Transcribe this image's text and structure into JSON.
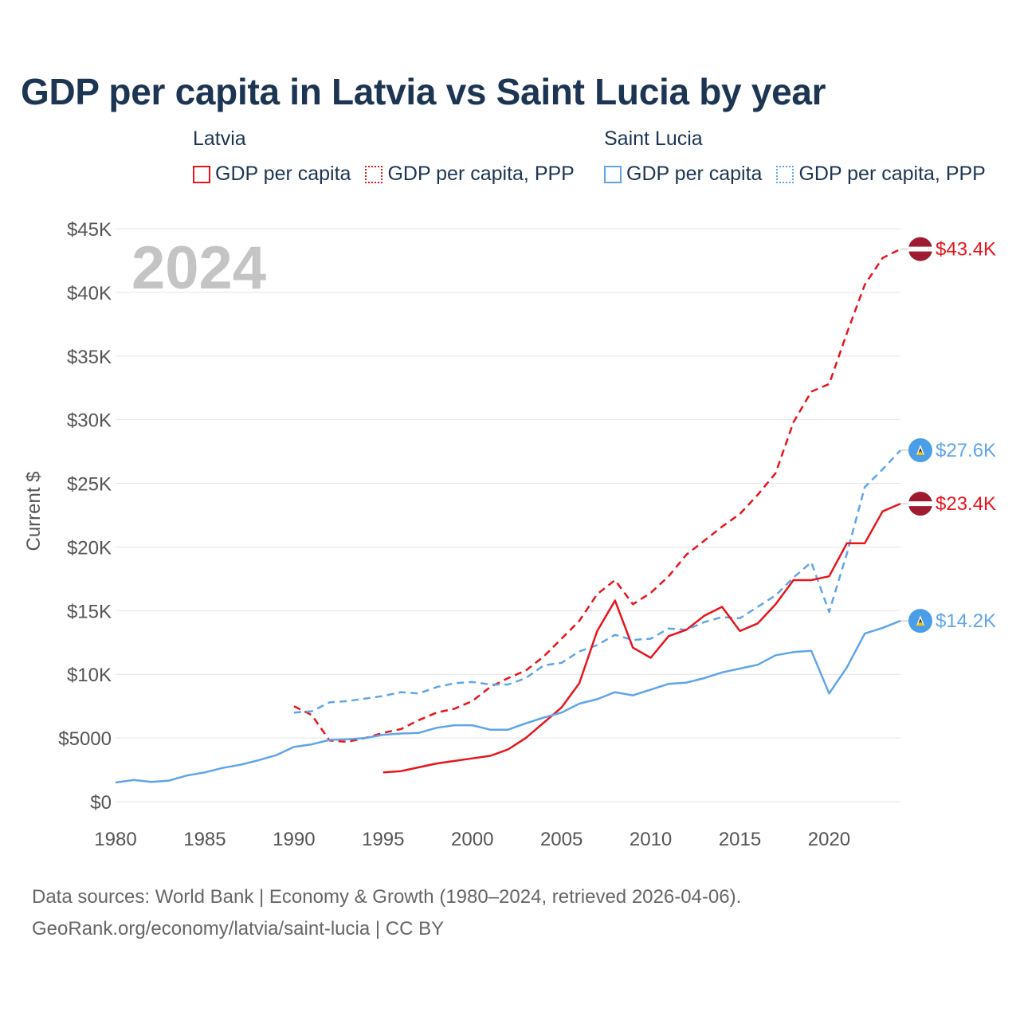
{
  "title": "GDP per capita in Latvia vs Saint Lucia by year",
  "legend": {
    "groups": [
      {
        "country": "Latvia",
        "items": [
          {
            "label": "GDP per capita",
            "style": "solid",
            "color": "#e8141c"
          },
          {
            "label": "GDP per capita, PPP",
            "style": "dotted",
            "color": "#e8141c"
          }
        ]
      },
      {
        "country": "Saint Lucia",
        "items": [
          {
            "label": "GDP per capita",
            "style": "solid",
            "color": "#5fa5e8"
          },
          {
            "label": "GDP per capita, PPP",
            "style": "dotted",
            "color": "#5fa5e8"
          }
        ]
      }
    ]
  },
  "footer": {
    "line1": "Data sources: World Bank | Economy & Growth (1980–2024, retrieved 2026-04-06).",
    "line2": "GeoRank.org/economy/latvia/saint-lucia | CC BY"
  },
  "chart_data": {
    "type": "line",
    "title": "GDP per capita in Latvia vs Saint Lucia by year",
    "xlabel": "",
    "ylabel": "Current $",
    "year_label": "2024",
    "xlim": [
      1980,
      2024
    ],
    "ylim": [
      0,
      45000
    ],
    "grid": true,
    "x_ticks": [
      {
        "value": 1980,
        "label": "1980"
      },
      {
        "value": 1985,
        "label": "1985"
      },
      {
        "value": 1990,
        "label": "1990"
      },
      {
        "value": 1995,
        "label": "1995"
      },
      {
        "value": 2000,
        "label": "2000"
      },
      {
        "value": 2005,
        "label": "2005"
      },
      {
        "value": 2010,
        "label": "2010"
      },
      {
        "value": 2015,
        "label": "2015"
      },
      {
        "value": 2020,
        "label": "2020"
      }
    ],
    "y_ticks": [
      {
        "value": 0,
        "label": "$0"
      },
      {
        "value": 5000,
        "label": "$5000"
      },
      {
        "value": 10000,
        "label": "$10K"
      },
      {
        "value": 15000,
        "label": "$15K"
      },
      {
        "value": 20000,
        "label": "$20K"
      },
      {
        "value": 25000,
        "label": "$25K"
      },
      {
        "value": 30000,
        "label": "$30K"
      },
      {
        "value": 35000,
        "label": "$35K"
      },
      {
        "value": 40000,
        "label": "$40K"
      },
      {
        "value": 45000,
        "label": "$45K"
      }
    ],
    "series": [
      {
        "name": "Latvia GDP per capita, PPP",
        "country": "Latvia",
        "color": "#e8141c",
        "dash": "dashed",
        "end_label": "$43.4K",
        "flag": "latvia",
        "x": [
          1990,
          1991,
          1992,
          1993,
          1994,
          1995,
          1996,
          1997,
          1998,
          1999,
          2000,
          2001,
          2002,
          2003,
          2004,
          2005,
          2006,
          2007,
          2008,
          2009,
          2010,
          2011,
          2012,
          2013,
          2014,
          2015,
          2016,
          2017,
          2018,
          2019,
          2020,
          2021,
          2022,
          2023,
          2024
        ],
        "values": [
          7500,
          6800,
          4800,
          4700,
          5000,
          5400,
          5700,
          6400,
          7000,
          7300,
          7900,
          9000,
          9700,
          10300,
          11400,
          12800,
          14200,
          16300,
          17400,
          15500,
          16400,
          17700,
          19400,
          20500,
          21600,
          22600,
          24100,
          25800,
          29800,
          32200,
          32800,
          36800,
          40600,
          42700,
          43400
        ]
      },
      {
        "name": "Saint Lucia GDP per capita, PPP",
        "country": "Saint Lucia",
        "color": "#5fa5e8",
        "dash": "dashed",
        "end_label": "$27.6K",
        "flag": "saint-lucia",
        "x": [
          1990,
          1991,
          1992,
          1993,
          1994,
          1995,
          1996,
          1997,
          1998,
          1999,
          2000,
          2001,
          2002,
          2003,
          2004,
          2005,
          2006,
          2007,
          2008,
          2009,
          2010,
          2011,
          2012,
          2013,
          2014,
          2015,
          2016,
          2017,
          2018,
          2019,
          2020,
          2021,
          2022,
          2023,
          2024
        ],
        "values": [
          7000,
          7100,
          7800,
          7900,
          8100,
          8300,
          8600,
          8500,
          9000,
          9300,
          9400,
          9200,
          9200,
          9700,
          10700,
          10900,
          11800,
          12300,
          13100,
          12700,
          12800,
          13600,
          13500,
          14100,
          14500,
          14400,
          15300,
          16200,
          17600,
          18800,
          14900,
          19500,
          24700,
          26100,
          27600
        ]
      },
      {
        "name": "Latvia GDP per capita",
        "country": "Latvia",
        "color": "#e8141c",
        "dash": "solid",
        "end_label": "$23.4K",
        "flag": "latvia",
        "x": [
          1995,
          1996,
          1997,
          1998,
          1999,
          2000,
          2001,
          2002,
          2003,
          2004,
          2005,
          2006,
          2007,
          2008,
          2009,
          2010,
          2011,
          2012,
          2013,
          2014,
          2015,
          2016,
          2017,
          2018,
          2019,
          2020,
          2021,
          2022,
          2023,
          2024
        ],
        "values": [
          2300,
          2400,
          2700,
          3000,
          3200,
          3400,
          3600,
          4100,
          5000,
          6200,
          7400,
          9300,
          13400,
          15800,
          12100,
          11300,
          13000,
          13500,
          14600,
          15300,
          13400,
          14000,
          15500,
          17400,
          17400,
          17700,
          20300,
          20300,
          22800,
          23400
        ]
      },
      {
        "name": "Saint Lucia GDP per capita",
        "country": "Saint Lucia",
        "color": "#5fa5e8",
        "dash": "solid",
        "end_label": "$14.2K",
        "flag": "saint-lucia",
        "x": [
          1980,
          1981,
          1982,
          1983,
          1984,
          1985,
          1986,
          1987,
          1988,
          1989,
          1990,
          1991,
          1992,
          1993,
          1994,
          1995,
          1996,
          1997,
          1998,
          1999,
          2000,
          2001,
          2002,
          2003,
          2004,
          2005,
          2006,
          2007,
          2008,
          2009,
          2010,
          2011,
          2012,
          2013,
          2014,
          2015,
          2016,
          2017,
          2018,
          2019,
          2020,
          2021,
          2022,
          2023,
          2024
        ],
        "values": [
          1500,
          1700,
          1550,
          1650,
          2050,
          2300,
          2650,
          2900,
          3250,
          3650,
          4300,
          4500,
          4850,
          4900,
          5000,
          5250,
          5350,
          5400,
          5800,
          6000,
          6000,
          5650,
          5650,
          6150,
          6600,
          7000,
          7700,
          8050,
          8600,
          8350,
          8800,
          9250,
          9350,
          9700,
          10150,
          10450,
          10750,
          11500,
          11750,
          11850,
          8500,
          10550,
          13200,
          13650,
          14200
        ]
      }
    ]
  }
}
